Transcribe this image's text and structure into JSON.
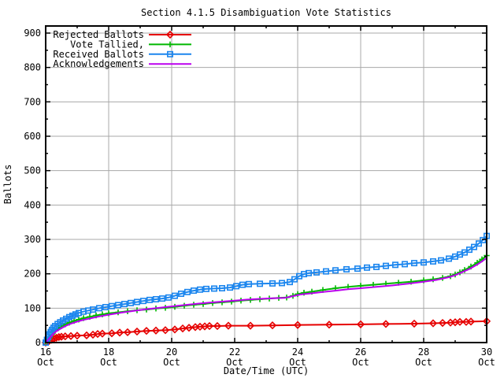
{
  "chart_data": {
    "type": "line",
    "title": "Section 4.1.5 Disambiguation Vote Statistics",
    "xlabel": "Date/Time (UTC)",
    "ylabel": "Ballots",
    "x_unit": "days after 16 Oct (UTC)",
    "xlim_days": [
      0,
      14
    ],
    "ylim": [
      0,
      900
    ],
    "y_major_tick_step": 100,
    "y_minor_tick_step": 50,
    "x_major_ticks": [
      {
        "x": 0,
        "day": "16",
        "month": "Oct"
      },
      {
        "x": 2,
        "day": "18",
        "month": "Oct"
      },
      {
        "x": 4,
        "day": "20",
        "month": "Oct"
      },
      {
        "x": 6,
        "day": "22",
        "month": "Oct"
      },
      {
        "x": 8,
        "day": "24",
        "month": "Oct"
      },
      {
        "x": 10,
        "day": "26",
        "month": "Oct"
      },
      {
        "x": 12,
        "day": "28",
        "month": "Oct"
      },
      {
        "x": 14,
        "day": "30",
        "month": "Oct"
      }
    ],
    "x_minor_tick_days": [
      1,
      3,
      5,
      7,
      9,
      11,
      13
    ],
    "grid": "major",
    "grid_color": "#a8a8a8",
    "axis_color": "#000000",
    "background": "#ffffff",
    "legend_position": "top-left-inside",
    "series": [
      {
        "name": "Rejected Ballots",
        "color": "#e60000",
        "marker": "diamond",
        "points": [
          [
            0,
            0
          ],
          [
            0.1,
            4
          ],
          [
            0.18,
            8
          ],
          [
            0.26,
            11
          ],
          [
            0.34,
            14
          ],
          [
            0.42,
            16
          ],
          [
            0.5,
            17
          ],
          [
            0.62,
            18
          ],
          [
            0.8,
            19
          ],
          [
            1.0,
            20
          ],
          [
            1.3,
            21
          ],
          [
            1.5,
            23
          ],
          [
            1.65,
            25
          ],
          [
            1.8,
            26
          ],
          [
            2.1,
            27
          ],
          [
            2.35,
            29
          ],
          [
            2.6,
            30
          ],
          [
            2.9,
            32
          ],
          [
            3.2,
            34
          ],
          [
            3.5,
            35
          ],
          [
            3.8,
            36
          ],
          [
            4.1,
            38
          ],
          [
            4.35,
            41
          ],
          [
            4.55,
            43
          ],
          [
            4.75,
            45
          ],
          [
            4.9,
            46
          ],
          [
            5.05,
            47
          ],
          [
            5.2,
            48
          ],
          [
            5.45,
            48
          ],
          [
            5.8,
            49
          ],
          [
            6.5,
            49
          ],
          [
            7.2,
            50
          ],
          [
            8.0,
            51
          ],
          [
            9.0,
            52
          ],
          [
            10.0,
            53
          ],
          [
            10.8,
            54
          ],
          [
            11.7,
            55
          ],
          [
            12.3,
            56
          ],
          [
            12.6,
            57
          ],
          [
            12.85,
            58
          ],
          [
            13.0,
            59
          ],
          [
            13.15,
            60
          ],
          [
            13.35,
            60
          ],
          [
            13.5,
            61
          ],
          [
            14,
            62
          ]
        ]
      },
      {
        "name": "Vote Tallied,",
        "color": "#00b800",
        "marker": "plus",
        "points": [
          [
            0,
            0
          ],
          [
            0.06,
            6
          ],
          [
            0.12,
            14
          ],
          [
            0.2,
            24
          ],
          [
            0.3,
            34
          ],
          [
            0.4,
            42
          ],
          [
            0.5,
            48
          ],
          [
            0.62,
            53
          ],
          [
            0.75,
            58
          ],
          [
            0.9,
            63
          ],
          [
            1.05,
            67
          ],
          [
            1.2,
            71
          ],
          [
            1.4,
            75
          ],
          [
            1.6,
            79
          ],
          [
            1.8,
            82
          ],
          [
            2.0,
            85
          ],
          [
            2.3,
            88
          ],
          [
            2.6,
            91
          ],
          [
            2.9,
            94
          ],
          [
            3.2,
            96
          ],
          [
            3.5,
            99
          ],
          [
            3.8,
            101
          ],
          [
            4.1,
            104
          ],
          [
            4.4,
            107
          ],
          [
            4.7,
            110
          ],
          [
            5.0,
            112
          ],
          [
            5.3,
            115
          ],
          [
            5.6,
            117
          ],
          [
            5.9,
            119
          ],
          [
            6.2,
            122
          ],
          [
            6.5,
            124
          ],
          [
            6.8,
            126
          ],
          [
            7.1,
            128
          ],
          [
            7.4,
            130
          ],
          [
            7.65,
            131
          ],
          [
            7.85,
            136
          ],
          [
            8.0,
            141
          ],
          [
            8.2,
            145
          ],
          [
            8.45,
            148
          ],
          [
            8.8,
            153
          ],
          [
            9.2,
            158
          ],
          [
            9.6,
            162
          ],
          [
            10.0,
            165
          ],
          [
            10.4,
            168
          ],
          [
            10.8,
            171
          ],
          [
            11.2,
            174
          ],
          [
            11.6,
            177
          ],
          [
            12.0,
            181
          ],
          [
            12.3,
            184
          ],
          [
            12.6,
            188
          ],
          [
            12.85,
            193
          ],
          [
            13.0,
            198
          ],
          [
            13.15,
            204
          ],
          [
            13.3,
            211
          ],
          [
            13.5,
            221
          ],
          [
            13.7,
            232
          ],
          [
            13.85,
            242
          ],
          [
            14,
            253
          ]
        ]
      },
      {
        "name": "Received Ballots",
        "color": "#1c86ee",
        "marker": "square",
        "points": [
          [
            0,
            0
          ],
          [
            0.04,
            8
          ],
          [
            0.08,
            16
          ],
          [
            0.12,
            24
          ],
          [
            0.16,
            31
          ],
          [
            0.2,
            37
          ],
          [
            0.25,
            43
          ],
          [
            0.3,
            48
          ],
          [
            0.38,
            54
          ],
          [
            0.46,
            59
          ],
          [
            0.55,
            64
          ],
          [
            0.65,
            69
          ],
          [
            0.75,
            74
          ],
          [
            0.85,
            78
          ],
          [
            0.95,
            82
          ],
          [
            1.05,
            86
          ],
          [
            1.2,
            90
          ],
          [
            1.35,
            93
          ],
          [
            1.5,
            96
          ],
          [
            1.7,
            100
          ],
          [
            1.9,
            103
          ],
          [
            2.1,
            106
          ],
          [
            2.3,
            109
          ],
          [
            2.5,
            112
          ],
          [
            2.7,
            115
          ],
          [
            2.9,
            118
          ],
          [
            3.1,
            121
          ],
          [
            3.3,
            124
          ],
          [
            3.5,
            126
          ],
          [
            3.7,
            128
          ],
          [
            3.9,
            131
          ],
          [
            4.1,
            136
          ],
          [
            4.3,
            142
          ],
          [
            4.5,
            147
          ],
          [
            4.7,
            151
          ],
          [
            4.9,
            154
          ],
          [
            5.1,
            156
          ],
          [
            5.35,
            157
          ],
          [
            5.6,
            158
          ],
          [
            5.85,
            160
          ],
          [
            6.05,
            164
          ],
          [
            6.25,
            168
          ],
          [
            6.45,
            170
          ],
          [
            6.8,
            171
          ],
          [
            7.2,
            172
          ],
          [
            7.5,
            173
          ],
          [
            7.75,
            176
          ],
          [
            7.9,
            184
          ],
          [
            8.05,
            193
          ],
          [
            8.2,
            199
          ],
          [
            8.35,
            202
          ],
          [
            8.6,
            204
          ],
          [
            8.9,
            207
          ],
          [
            9.2,
            210
          ],
          [
            9.55,
            213
          ],
          [
            9.9,
            215
          ],
          [
            10.2,
            218
          ],
          [
            10.5,
            220
          ],
          [
            10.8,
            223
          ],
          [
            11.1,
            226
          ],
          [
            11.4,
            228
          ],
          [
            11.7,
            231
          ],
          [
            12.0,
            233
          ],
          [
            12.3,
            236
          ],
          [
            12.55,
            239
          ],
          [
            12.8,
            244
          ],
          [
            13.0,
            250
          ],
          [
            13.15,
            256
          ],
          [
            13.3,
            262
          ],
          [
            13.45,
            270
          ],
          [
            13.6,
            278
          ],
          [
            13.75,
            288
          ],
          [
            13.88,
            298
          ],
          [
            14,
            310
          ]
        ]
      },
      {
        "name": "Acknowledgements",
        "color": "#bb00ee",
        "marker": "none",
        "points": [
          [
            0,
            0
          ],
          [
            0.08,
            8
          ],
          [
            0.16,
            17
          ],
          [
            0.25,
            26
          ],
          [
            0.35,
            34
          ],
          [
            0.5,
            42
          ],
          [
            0.65,
            49
          ],
          [
            0.8,
            55
          ],
          [
            1.0,
            61
          ],
          [
            1.2,
            66
          ],
          [
            1.45,
            71
          ],
          [
            1.7,
            76
          ],
          [
            2.0,
            81
          ],
          [
            2.4,
            87
          ],
          [
            2.8,
            92
          ],
          [
            3.2,
            97
          ],
          [
            3.6,
            101
          ],
          [
            4.0,
            105
          ],
          [
            4.4,
            109
          ],
          [
            4.8,
            113
          ],
          [
            5.2,
            116
          ],
          [
            5.6,
            119
          ],
          [
            6.0,
            122
          ],
          [
            6.4,
            125
          ],
          [
            6.8,
            127
          ],
          [
            7.2,
            129
          ],
          [
            7.6,
            130
          ],
          [
            7.9,
            136
          ],
          [
            8.1,
            140
          ],
          [
            8.4,
            143
          ],
          [
            8.8,
            147
          ],
          [
            9.2,
            151
          ],
          [
            9.6,
            155
          ],
          [
            10.0,
            158
          ],
          [
            10.5,
            162
          ],
          [
            11.0,
            166
          ],
          [
            11.5,
            171
          ],
          [
            12.0,
            177
          ],
          [
            12.4,
            182
          ],
          [
            12.8,
            190
          ],
          [
            13.0,
            196
          ],
          [
            13.2,
            204
          ],
          [
            13.45,
            214
          ],
          [
            13.7,
            227
          ],
          [
            13.85,
            236
          ],
          [
            14,
            246
          ]
        ]
      }
    ]
  }
}
